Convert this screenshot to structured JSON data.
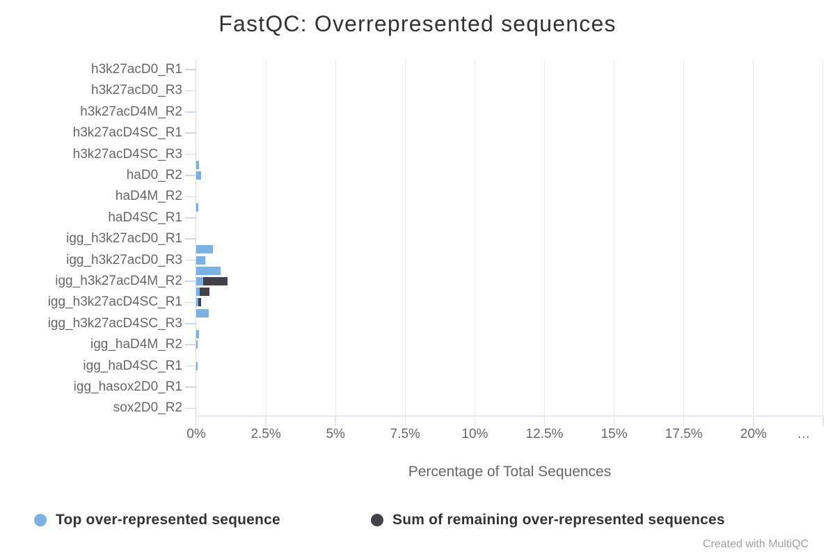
{
  "footer": {
    "credit": "Created with MultiQC"
  },
  "chart_data": {
    "type": "bar",
    "orientation": "horizontal",
    "title": "FastQC: Overrepresented sequences",
    "xlabel": "Percentage of Total Sequences",
    "ylabel": "",
    "xlim": [
      0,
      22.5
    ],
    "grid": true,
    "legend_position": "bottom",
    "x_ticks": [
      {
        "value": 0,
        "label": "0%"
      },
      {
        "value": 2.5,
        "label": "2.5%"
      },
      {
        "value": 5,
        "label": "5%"
      },
      {
        "value": 7.5,
        "label": "7.5%"
      },
      {
        "value": 10,
        "label": "10%"
      },
      {
        "value": 12.5,
        "label": "12.5%"
      },
      {
        "value": 15,
        "label": "15%"
      },
      {
        "value": 17.5,
        "label": "17.5%"
      },
      {
        "value": 20,
        "label": "20%"
      },
      {
        "value": 22.5,
        "label": "…"
      }
    ],
    "categories": [
      "h3k27acD0_R1",
      "",
      "h3k27acD0_R3",
      "",
      "h3k27acD4M_R2",
      "",
      "h3k27acD4SC_R1",
      "",
      "h3k27acD4SC_R3",
      "",
      "haD0_R2",
      "",
      "haD4M_R2",
      "",
      "haD4SC_R1",
      "",
      "igg_h3k27acD0_R1",
      "",
      "igg_h3k27acD0_R3",
      "",
      "igg_h3k27acD4M_R2",
      "",
      "igg_h3k27acD4SC_R1",
      "",
      "igg_h3k27acD4SC_R3",
      "",
      "igg_haD4M_R2",
      "",
      "igg_haD4SC_R1",
      "",
      "igg_hasox2D0_R1",
      "",
      "sox2D0_R2"
    ],
    "series": [
      {
        "name": "Top over-represented sequence",
        "color": "#7cb1e4",
        "values": [
          0,
          0,
          0,
          0,
          0,
          0,
          0,
          0,
          0,
          0.1,
          0.18,
          0,
          0,
          0.08,
          0,
          0,
          0,
          0.6,
          0.32,
          0.87,
          0.25,
          0.12,
          0.07,
          0.45,
          0,
          0.11,
          0.05,
          0,
          0.04,
          0,
          0,
          0,
          0
        ]
      },
      {
        "name": "Sum of remaining over-represented sequences",
        "color": "#434047",
        "values": [
          0,
          0,
          0,
          0,
          0,
          0,
          0,
          0,
          0,
          0,
          0,
          0,
          0,
          0,
          0,
          0,
          0,
          0,
          0,
          0,
          0.88,
          0.36,
          0.1,
          0,
          0,
          0,
          0,
          0,
          0,
          0,
          0,
          0,
          0
        ]
      }
    ]
  }
}
